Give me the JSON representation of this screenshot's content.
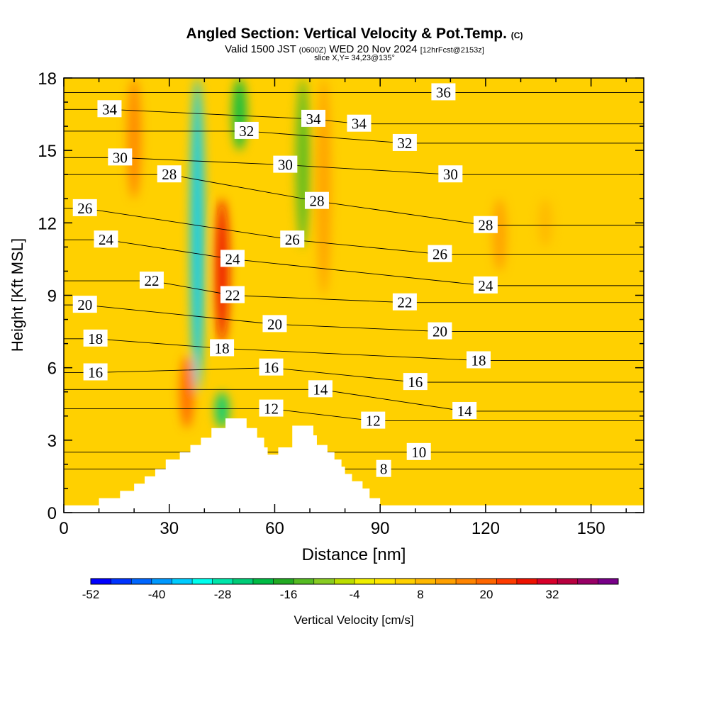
{
  "header": {
    "title": "Angled Section: Vertical Velocity & Pot.Temp.",
    "title_unit": "(C)",
    "valid_prefix": "Valid 1500 JST",
    "valid_utc": "(0600Z)",
    "valid_date": "WED 20 Nov 2024",
    "forecast": "[12hrFcst@2153z]",
    "slice": "slice X,Y= 34,23@135°"
  },
  "chart_data": {
    "type": "heatmap",
    "xlabel": "Distance [nm]",
    "ylabel": "Height [Kft MSL]",
    "xlim": [
      0,
      165
    ],
    "ylim": [
      0,
      18
    ],
    "x_ticks": [
      0,
      30,
      60,
      90,
      120,
      150
    ],
    "y_ticks": [
      0,
      3,
      6,
      9,
      12,
      15,
      18
    ],
    "terrain_profile": [
      [
        0,
        0.3
      ],
      [
        10,
        0.3
      ],
      [
        10,
        0.6
      ],
      [
        16,
        0.6
      ],
      [
        16,
        0.9
      ],
      [
        20,
        0.9
      ],
      [
        20,
        1.2
      ],
      [
        23,
        1.2
      ],
      [
        23,
        1.5
      ],
      [
        26,
        1.5
      ],
      [
        26,
        1.8
      ],
      [
        29,
        1.8
      ],
      [
        29,
        2.2
      ],
      [
        33,
        2.2
      ],
      [
        33,
        2.5
      ],
      [
        36,
        2.5
      ],
      [
        36,
        2.8
      ],
      [
        39,
        2.8
      ],
      [
        39,
        3.1
      ],
      [
        42,
        3.1
      ],
      [
        42,
        3.5
      ],
      [
        46,
        3.5
      ],
      [
        46,
        3.9
      ],
      [
        52,
        3.9
      ],
      [
        52,
        3.5
      ],
      [
        55,
        3.5
      ],
      [
        55,
        3.1
      ],
      [
        57,
        3.1
      ],
      [
        57,
        2.7
      ],
      [
        58,
        2.7
      ],
      [
        58,
        2.4
      ],
      [
        61,
        2.4
      ],
      [
        61,
        2.7
      ],
      [
        65,
        2.7
      ],
      [
        65,
        3.6
      ],
      [
        71,
        3.6
      ],
      [
        71,
        3.2
      ],
      [
        72,
        3.2
      ],
      [
        72,
        2.8
      ],
      [
        75,
        2.8
      ],
      [
        75,
        2.5
      ],
      [
        77,
        2.5
      ],
      [
        77,
        2.2
      ],
      [
        79,
        2.2
      ],
      [
        79,
        1.9
      ],
      [
        80,
        1.9
      ],
      [
        80,
        1.6
      ],
      [
        82,
        1.6
      ],
      [
        82,
        1.3
      ],
      [
        85,
        1.3
      ],
      [
        85,
        1.0
      ],
      [
        87,
        1.0
      ],
      [
        87,
        0.6
      ],
      [
        90,
        0.6
      ],
      [
        90,
        0.3
      ],
      [
        165,
        0.3
      ]
    ],
    "vertical_velocity_features": [
      {
        "x": 38,
        "y_range": [
          5,
          18
        ],
        "value": -36
      },
      {
        "x": 45,
        "y_range": [
          7,
          13
        ],
        "value": 32
      },
      {
        "x": 35,
        "y_range": [
          3.5,
          6.5
        ],
        "value": 26
      },
      {
        "x": 20,
        "y_range": [
          13,
          18
        ],
        "value": 20
      },
      {
        "x": 74,
        "y_range": [
          9,
          18
        ],
        "value": 16
      },
      {
        "x": 50,
        "y_range": [
          15,
          18
        ],
        "value": -20
      },
      {
        "x": 68,
        "y_range": [
          11,
          18
        ],
        "value": -12
      },
      {
        "x": 45,
        "y_range": [
          3.5,
          5
        ],
        "value": -24
      },
      {
        "x": 124,
        "y_range": [
          10,
          13
        ],
        "value": 16
      },
      {
        "x": 137,
        "y_range": [
          11,
          13
        ],
        "value": 12
      }
    ],
    "potential_temperature_isolines": [
      {
        "label": "8",
        "x": 91,
        "y": 1.8
      },
      {
        "label": "10",
        "x": 101,
        "y": 2.5
      },
      {
        "label": "12",
        "x": 59,
        "y": 4.3
      },
      {
        "label": "12",
        "x": 88,
        "y": 3.8
      },
      {
        "label": "14",
        "x": 73,
        "y": 5.1
      },
      {
        "label": "14",
        "x": 114,
        "y": 4.2
      },
      {
        "label": "16",
        "x": 9,
        "y": 5.8
      },
      {
        "label": "16",
        "x": 59,
        "y": 6.0
      },
      {
        "label": "16",
        "x": 100,
        "y": 5.4
      },
      {
        "label": "18",
        "x": 9,
        "y": 7.2
      },
      {
        "label": "18",
        "x": 45,
        "y": 6.8
      },
      {
        "label": "18",
        "x": 118,
        "y": 6.3
      },
      {
        "label": "20",
        "x": 6,
        "y": 8.6
      },
      {
        "label": "20",
        "x": 60,
        "y": 7.8
      },
      {
        "label": "20",
        "x": 107,
        "y": 7.5
      },
      {
        "label": "22",
        "x": 25,
        "y": 9.6
      },
      {
        "label": "22",
        "x": 48,
        "y": 9.0
      },
      {
        "label": "22",
        "x": 97,
        "y": 8.7
      },
      {
        "label": "24",
        "x": 12,
        "y": 11.3
      },
      {
        "label": "24",
        "x": 48,
        "y": 10.5
      },
      {
        "label": "24",
        "x": 120,
        "y": 9.4
      },
      {
        "label": "26",
        "x": 6,
        "y": 12.6
      },
      {
        "label": "26",
        "x": 65,
        "y": 11.3
      },
      {
        "label": "26",
        "x": 107,
        "y": 10.7
      },
      {
        "label": "28",
        "x": 30,
        "y": 14.0
      },
      {
        "label": "28",
        "x": 72,
        "y": 12.9
      },
      {
        "label": "28",
        "x": 120,
        "y": 11.9
      },
      {
        "label": "30",
        "x": 16,
        "y": 14.7
      },
      {
        "label": "30",
        "x": 63,
        "y": 14.4
      },
      {
        "label": "30",
        "x": 110,
        "y": 14.0
      },
      {
        "label": "32",
        "x": 52,
        "y": 15.8
      },
      {
        "label": "32",
        "x": 97,
        "y": 15.3
      },
      {
        "label": "34",
        "x": 13,
        "y": 16.7
      },
      {
        "label": "34",
        "x": 71,
        "y": 16.3
      },
      {
        "label": "34",
        "x": 84,
        "y": 16.1
      },
      {
        "label": "36",
        "x": 108,
        "y": 17.4
      }
    ],
    "colorbar": {
      "label": "Vertical Velocity [cm/s]",
      "tick_labels": [
        "-52",
        "-40",
        "-28",
        "-16",
        "-4",
        "8",
        "20",
        "32"
      ],
      "min": -52,
      "max": 44,
      "step": 4,
      "colors": [
        "#0000ff",
        "#0033ff",
        "#0066ff",
        "#0099ff",
        "#00ccff",
        "#00ffee",
        "#00e6aa",
        "#00cc77",
        "#00bb44",
        "#22aa22",
        "#55bb22",
        "#88cc22",
        "#bbdd00",
        "#eeee00",
        "#ffe600",
        "#ffd000",
        "#ffb800",
        "#ffa000",
        "#ff8400",
        "#ff6600",
        "#ff3b00",
        "#ee1100",
        "#d8002a",
        "#b8003f",
        "#980066",
        "#780088"
      ]
    },
    "legend": "bottom"
  }
}
